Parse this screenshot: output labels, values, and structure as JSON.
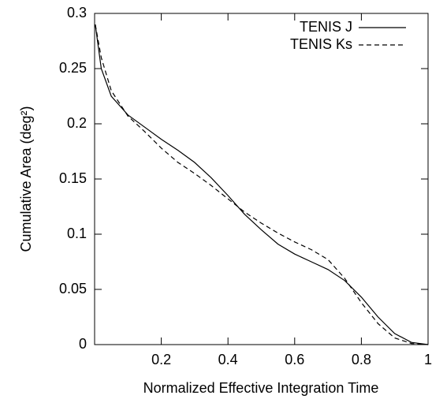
{
  "chart_data": {
    "type": "line",
    "xlabel": "Normalized Effective Integration Time",
    "ylabel": "Cumulative Area (deg²)",
    "x": [
      0.002,
      0.02,
      0.05,
      0.1,
      0.15,
      0.2,
      0.25,
      0.3,
      0.35,
      0.4,
      0.45,
      0.5,
      0.55,
      0.6,
      0.65,
      0.7,
      0.75,
      0.8,
      0.85,
      0.9,
      0.95,
      1.0
    ],
    "series": [
      {
        "name": "TENIS J",
        "color": "#000000",
        "dash": "solid",
        "values": [
          0.29,
          0.25,
          0.225,
          0.208,
          0.197,
          0.186,
          0.176,
          0.165,
          0.151,
          0.135,
          0.118,
          0.104,
          0.091,
          0.082,
          0.075,
          0.068,
          0.058,
          0.043,
          0.025,
          0.01,
          0.002,
          0
        ]
      },
      {
        "name": "TENIS Ks",
        "color": "#000000",
        "dash": "dashed",
        "values": [
          0.29,
          0.26,
          0.23,
          0.207,
          0.193,
          0.178,
          0.165,
          0.155,
          0.144,
          0.132,
          0.12,
          0.11,
          0.101,
          0.093,
          0.086,
          0.077,
          0.06,
          0.038,
          0.019,
          0.006,
          0.001,
          0
        ]
      }
    ],
    "xlim": [
      0,
      1
    ],
    "xticks": [
      0.2,
      0.4,
      0.6,
      0.8,
      1
    ],
    "ylim": [
      0,
      0.3
    ],
    "yticks": [
      0,
      0.05,
      0.1,
      0.15,
      0.2,
      0.25,
      0.3
    ],
    "grid": false,
    "legend": "top-right"
  }
}
